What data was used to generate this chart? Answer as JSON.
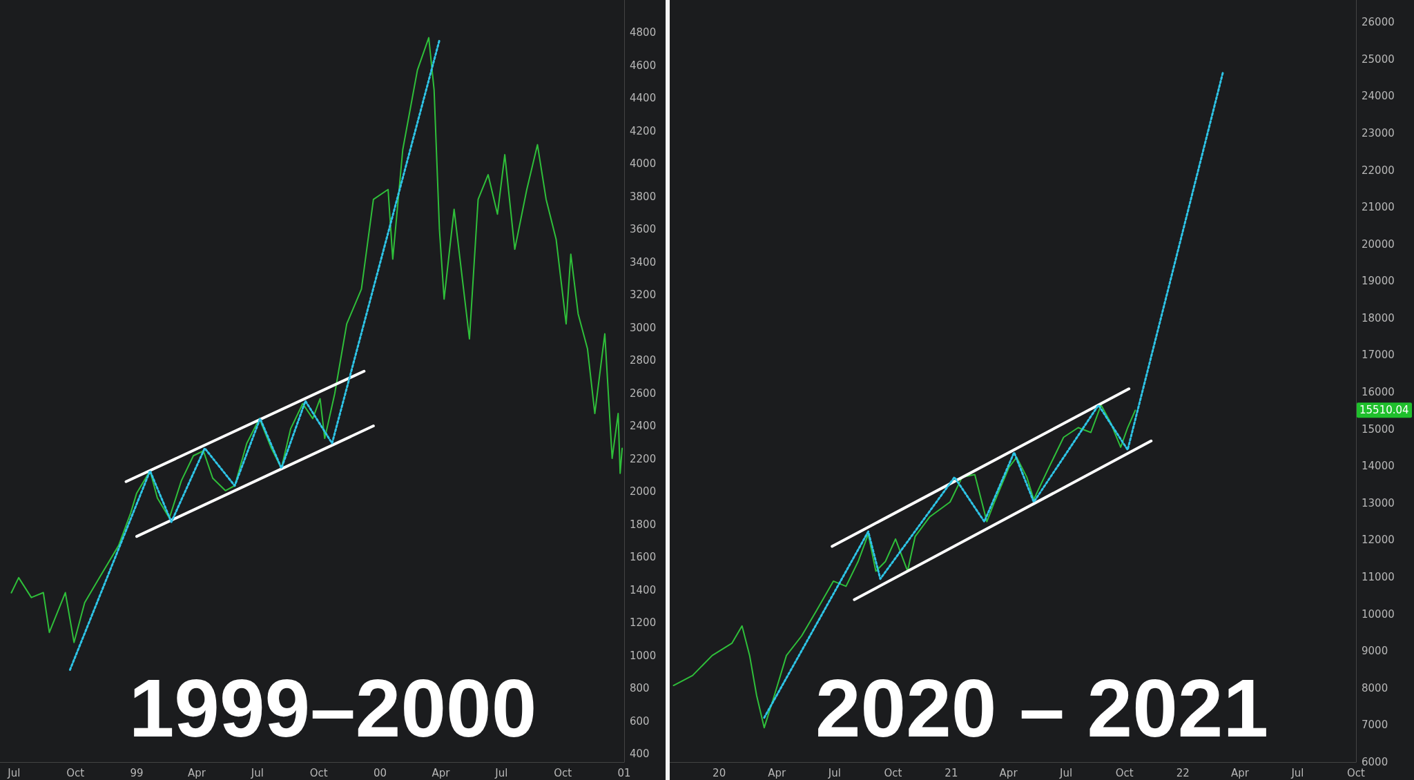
{
  "chart_data": [
    {
      "type": "line",
      "title": "1999–2000",
      "xlim": [
        "1998-06-10",
        "2001-01-01"
      ],
      "ylim": [
        350,
        5000
      ],
      "xticks": [
        {
          "value": "1998-07-01",
          "label": "Jul"
        },
        {
          "value": "1998-10-01",
          "label": "Oct"
        },
        {
          "value": "1999-01-01",
          "label": "99"
        },
        {
          "value": "1999-04-01",
          "label": "Apr"
        },
        {
          "value": "1999-07-01",
          "label": "Jul"
        },
        {
          "value": "1999-10-01",
          "label": "Oct"
        },
        {
          "value": "2000-01-01",
          "label": "00"
        },
        {
          "value": "2000-04-01",
          "label": "Apr"
        },
        {
          "value": "2000-07-01",
          "label": "Jul"
        },
        {
          "value": "2000-10-01",
          "label": "Oct"
        },
        {
          "value": "2001-01-01",
          "label": "01"
        }
      ],
      "yticks": [
        400,
        600,
        800,
        1000,
        1200,
        1400,
        1600,
        1800,
        2000,
        2200,
        2400,
        2600,
        2800,
        3000,
        3200,
        3400,
        3600,
        3800,
        4000,
        4200,
        4400,
        4600,
        4800
      ],
      "series": [
        {
          "color": "#2fbf3a",
          "line_style": "solid",
          "x": [
            "1998-06-27",
            "1998-07-08",
            "1998-07-27",
            "1998-08-14",
            "1998-08-23",
            "1998-09-16",
            "1998-09-29",
            "1998-10-15",
            "1998-11-06",
            "1998-12-05",
            "1998-12-23",
            "1999-01-01",
            "1999-01-21",
            "1999-02-01",
            "1999-02-19",
            "1999-03-09",
            "1999-03-27",
            "1999-04-11",
            "1999-04-25",
            "1999-05-14",
            "1999-05-28",
            "1999-06-15",
            "1999-07-04",
            "1999-07-22",
            "1999-08-06",
            "1999-08-20",
            "1999-09-07",
            "1999-09-22",
            "1999-10-03",
            "1999-10-10",
            "1999-10-25",
            "1999-11-12",
            "1999-12-04",
            "1999-12-22",
            "2000-01-13",
            "2000-01-20",
            "2000-02-04",
            "2000-02-26",
            "2000-03-14",
            "2000-03-22",
            "2000-03-30",
            "2000-04-06",
            "2000-04-21",
            "2000-05-14",
            "2000-05-27",
            "2000-06-11",
            "2000-06-25",
            "2000-07-06",
            "2000-07-21",
            "2000-08-08",
            "2000-08-24",
            "2000-09-06",
            "2000-09-21",
            "2000-10-06",
            "2000-10-13",
            "2000-10-24",
            "2000-11-07",
            "2000-11-18",
            "2000-12-03",
            "2000-12-14",
            "2000-12-23",
            "2000-12-26",
            "2000-12-29"
          ],
          "values": [
            1383,
            1475,
            1354,
            1384,
            1141,
            1384,
            1080,
            1323,
            1475,
            1672,
            1870,
            1991,
            2127,
            1961,
            1839,
            2067,
            2219,
            2249,
            2082,
            2006,
            2036,
            2294,
            2446,
            2264,
            2143,
            2385,
            2537,
            2446,
            2567,
            2325,
            2598,
            3024,
            3236,
            3783,
            3844,
            3419,
            4087,
            4573,
            4770,
            4451,
            3600,
            3175,
            3723,
            2932,
            3783,
            3934,
            3693,
            4056,
            3479,
            3844,
            4117,
            3783,
            3540,
            3024,
            3449,
            3085,
            2872,
            2477,
            2963,
            2203,
            2477,
            2112,
            2264
          ]
        },
        {
          "color": "#ffffff",
          "line_style": "solid",
          "x": [
            "1998-12-16",
            "1999-12-08"
          ],
          "values": [
            2061,
            2735
          ]
        },
        {
          "color": "#ffffff",
          "line_style": "solid",
          "x": [
            "1999-01-01",
            "1999-12-22"
          ],
          "values": [
            1727,
            2401
          ]
        },
        {
          "color": "#2ec4e6",
          "line_style": "dotted",
          "x": [
            "1998-09-23",
            "1999-01-21",
            "1999-02-22",
            "1999-04-13",
            "1999-05-28",
            "1999-07-05",
            "1999-08-06",
            "1999-09-11",
            "1999-10-21",
            "2000-03-30"
          ],
          "values": [
            913,
            2127,
            1815,
            2265,
            2036,
            2446,
            2143,
            2553,
            2295,
            4755
          ]
        }
      ]
    },
    {
      "type": "line",
      "title": "2020 – 2021",
      "xlim": [
        "2019-10-15",
        "2022-10-01"
      ],
      "ylim": [
        6000,
        26600
      ],
      "xticks": [
        {
          "value": "2020-01-01",
          "label": "20"
        },
        {
          "value": "2020-04-01",
          "label": "Apr"
        },
        {
          "value": "2020-07-01",
          "label": "Jul"
        },
        {
          "value": "2020-10-01",
          "label": "Oct"
        },
        {
          "value": "2021-01-01",
          "label": "21"
        },
        {
          "value": "2021-04-01",
          "label": "Apr"
        },
        {
          "value": "2021-07-01",
          "label": "Jul"
        },
        {
          "value": "2021-10-01",
          "label": "Oct"
        },
        {
          "value": "2022-01-01",
          "label": "22"
        },
        {
          "value": "2022-04-01",
          "label": "Apr"
        },
        {
          "value": "2022-07-01",
          "label": "Jul"
        },
        {
          "value": "2022-10-01",
          "label": "Oct"
        }
      ],
      "yticks": [
        6000,
        7000,
        8000,
        9000,
        10000,
        11000,
        12000,
        13000,
        14000,
        15000,
        16000,
        17000,
        18000,
        19000,
        20000,
        21000,
        22000,
        23000,
        24000,
        25000,
        26000
      ],
      "annotations": [
        "15510.04"
      ],
      "series": [
        {
          "color": "#2fbf3a",
          "line_style": "solid",
          "x": [
            "2019-10-21",
            "2019-11-20",
            "2019-12-21",
            "2020-01-21",
            "2020-02-06",
            "2020-02-18",
            "2020-02-29",
            "2020-03-12",
            "2020-03-28",
            "2020-04-16",
            "2020-05-10",
            "2020-06-02",
            "2020-06-29",
            "2020-07-19",
            "2020-08-07",
            "2020-08-23",
            "2020-09-04",
            "2020-09-19",
            "2020-10-05",
            "2020-10-24",
            "2020-11-05",
            "2020-11-28",
            "2020-12-30",
            "2021-01-18",
            "2021-02-07",
            "2021-02-26",
            "2021-03-10",
            "2021-04-02",
            "2021-04-14",
            "2021-04-30",
            "2021-05-11",
            "2021-06-04",
            "2021-06-27",
            "2021-07-20",
            "2021-08-09",
            "2021-08-25",
            "2021-09-09",
            "2021-09-25",
            "2021-10-06",
            "2021-10-18"
          ],
          "values": [
            8070,
            8340,
            8880,
            9210,
            9680,
            8880,
            7800,
            6930,
            7800,
            8880,
            9410,
            10080,
            10890,
            10750,
            11420,
            12160,
            11160,
            11420,
            12030,
            11160,
            12100,
            12630,
            13030,
            13700,
            13770,
            12500,
            13030,
            13970,
            14240,
            13700,
            13100,
            13970,
            14780,
            15040,
            14910,
            15650,
            15180,
            14510,
            15040,
            15510
          ]
        },
        {
          "color": "#ffffff",
          "line_style": "solid",
          "x": [
            "2020-06-27",
            "2021-10-08"
          ],
          "values": [
            11830,
            16090
          ]
        },
        {
          "color": "#ffffff",
          "line_style": "solid",
          "x": [
            "2020-08-01",
            "2021-11-12"
          ],
          "values": [
            10390,
            14680
          ]
        },
        {
          "color": "#2ec4e6",
          "line_style": "dotted",
          "x": [
            "2020-03-12",
            "2020-08-23",
            "2020-09-11",
            "2021-01-06",
            "2021-02-22",
            "2021-04-10",
            "2021-05-11",
            "2021-08-21",
            "2021-10-06",
            "2022-03-05"
          ],
          "values": [
            7200,
            12230,
            10950,
            13700,
            12500,
            14370,
            13030,
            15650,
            14440,
            24630
          ]
        }
      ]
    }
  ]
}
